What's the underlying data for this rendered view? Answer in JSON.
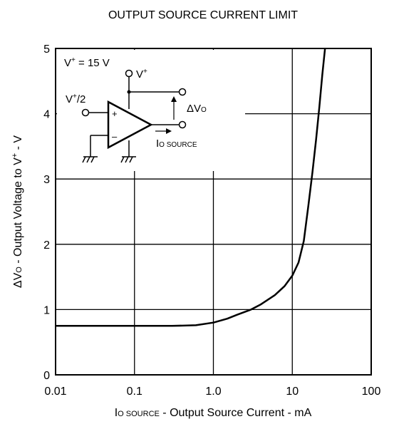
{
  "chart_data": {
    "type": "line",
    "title": "OUTPUT SOURCE CURRENT LIMIT",
    "xlabel": {
      "sym": "I",
      "sub": "O SOURCE",
      "rest": " - Output Source Current - mA"
    },
    "ylabel": {
      "sym": "ΔV",
      "sub": "O",
      "rest": " - Output Voltage to V",
      "sup": "+",
      "tail": " - V"
    },
    "xscale": "log",
    "xlim": [
      0.01,
      100
    ],
    "ylim": [
      0,
      5
    ],
    "grid": true,
    "x_ticks": [
      0.01,
      0.1,
      1,
      10,
      100
    ],
    "x_tick_labels": [
      "0.01",
      "0.1",
      "1.0",
      "10",
      "100"
    ],
    "y_ticks": [
      0,
      1,
      2,
      3,
      4,
      5
    ],
    "y_tick_labels": [
      "0",
      "1",
      "2",
      "3",
      "4",
      "5"
    ],
    "series": [
      {
        "x": [
          0.01,
          0.03,
          0.1,
          0.3,
          0.6,
          1.0,
          1.5,
          2.0,
          3.0,
          4.0,
          6.0,
          8.0,
          10.0,
          12.0,
          14.0,
          16.0,
          18.0,
          20.0,
          22.0,
          24.0,
          26.0
        ],
        "y": [
          0.75,
          0.75,
          0.75,
          0.75,
          0.76,
          0.8,
          0.86,
          0.92,
          1.0,
          1.08,
          1.22,
          1.36,
          1.52,
          1.72,
          2.05,
          2.6,
          3.1,
          3.6,
          4.1,
          4.6,
          5.0
        ]
      }
    ],
    "inset": {
      "supply": {
        "sym": "V",
        "sup": "+",
        "rest": " = 15 V"
      },
      "rail": {
        "sym": "V",
        "sup": "+"
      },
      "input": {
        "sym": "V",
        "sup": "+",
        "rest": "/2"
      },
      "plus": "+",
      "minus": "–",
      "delta_vo": {
        "sym": "ΔV",
        "sub": "O"
      },
      "io_source": {
        "sym": "I",
        "sub": "O SOURCE"
      }
    }
  }
}
